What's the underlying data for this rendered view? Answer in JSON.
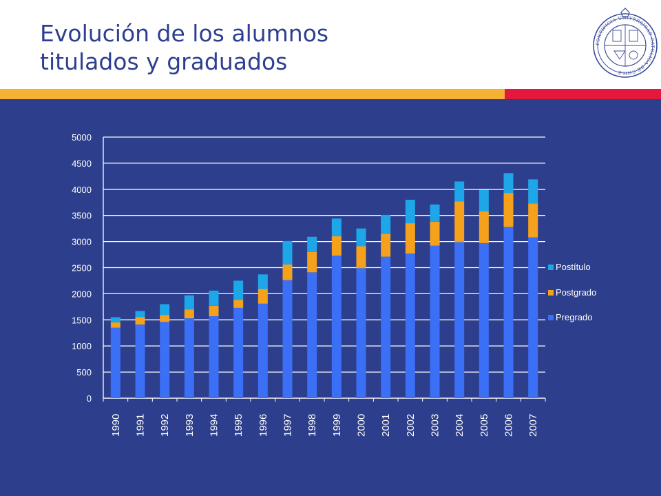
{
  "slide": {
    "title_line1": "Evolución de los alumnos",
    "title_line2": "titulados y graduados",
    "colors": {
      "title": "#2e3f8f",
      "panel": "#2d3e8c",
      "gold": "#f5b133",
      "red": "#e4173c"
    },
    "logo": {
      "name": "university-seal",
      "text": "PONTIFICIA UNIVERSIDAD CATOLICA DE CHILE"
    }
  },
  "chart_data": {
    "type": "bar",
    "stacked": true,
    "categories": [
      "1990",
      "1991",
      "1992",
      "1993",
      "1994",
      "1995",
      "1996",
      "1997",
      "1998",
      "1999",
      "2000",
      "2001",
      "2002",
      "2003",
      "2004",
      "2005",
      "2006",
      "2007"
    ],
    "series": [
      {
        "name": "Pregrado",
        "color": "#3b6ff5",
        "values": [
          1350,
          1410,
          1460,
          1530,
          1570,
          1730,
          1810,
          2260,
          2410,
          2730,
          2490,
          2710,
          2770,
          2920,
          2990,
          2970,
          3280,
          3080
        ]
      },
      {
        "name": "Postgrado",
        "color": "#f5a11c",
        "values": [
          100,
          140,
          130,
          170,
          200,
          150,
          280,
          300,
          390,
          370,
          420,
          440,
          580,
          460,
          780,
          610,
          650,
          650
        ]
      },
      {
        "name": "Postítulo",
        "color": "#1ea7e8",
        "values": [
          100,
          120,
          210,
          270,
          290,
          370,
          280,
          450,
          290,
          340,
          340,
          360,
          450,
          330,
          380,
          410,
          380,
          460
        ]
      }
    ],
    "ylim": [
      0,
      5000
    ],
    "yticks": [
      "0",
      "500",
      "1000",
      "1500",
      "2000",
      "2500",
      "3000",
      "3500",
      "4000",
      "4500",
      "5000"
    ],
    "legend_order": [
      "Postítulo",
      "Postgrado",
      "Pregrado"
    ],
    "legend_position": "right",
    "grid": true,
    "text_color": "#ffffff",
    "grid_color": "#ffffff"
  }
}
